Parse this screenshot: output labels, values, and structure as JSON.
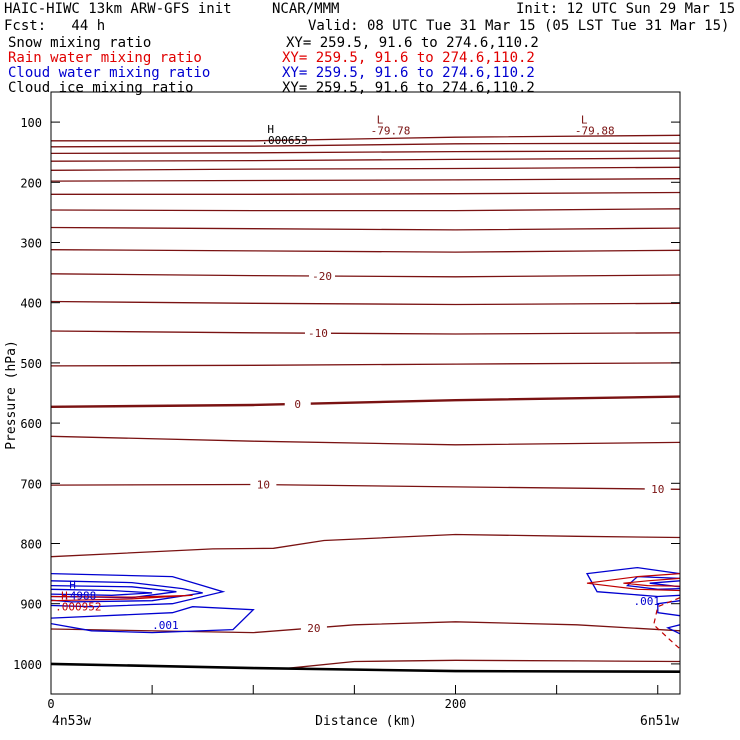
{
  "header": {
    "title": "HAIC-HIWC 13km ARW-GFS init",
    "center": "NCAR/MMM",
    "init": "Init: 12 UTC Sun 29 Mar 15",
    "fcst": "Fcst:   44 h",
    "valid": "Valid: 08 UTC Tue 31 Mar 15 (05 LST Tue 31 Mar 15)",
    "fields": [
      {
        "name": "Snow mixing ratio",
        "xy": "XY= 259.5, 91.6 to 274.6,110.2",
        "color": "#000000"
      },
      {
        "name": "Rain water mixing ratio",
        "xy": "XY= 259.5, 91.6 to 274.6,110.2",
        "color": "#e00000"
      },
      {
        "name": "Cloud water mixing ratio",
        "xy": "XY= 259.5, 91.6 to 274.6,110.2",
        "color": "#0000d0"
      },
      {
        "name": "Cloud ice mixing ratio",
        "xy": "XY= 259.5, 91.6 to 274.6,110.2",
        "color": "#000000"
      }
    ]
  },
  "colors": {
    "temperature": "#7a1212",
    "rain": "#c00000",
    "cloud": "#0000d0",
    "axis": "#000000"
  },
  "chart_data": {
    "type": "contour",
    "xlabel": "Distance (km)",
    "ylabel": "Pressure (hPa)",
    "xlim": [
      0,
      311
    ],
    "ylim": [
      1050,
      50
    ],
    "yscale": "linear-inverted",
    "x_ticks": [
      {
        "v": 0,
        "label": "0"
      },
      {
        "v": 200,
        "label": "200"
      }
    ],
    "x_minor": [
      50,
      100,
      150,
      250,
      300
    ],
    "y_ticks": [
      100,
      200,
      300,
      400,
      500,
      600,
      700,
      800,
      900,
      1000
    ],
    "endpoints": {
      "left": "4n53w",
      "right": "6n51w"
    },
    "temperature_contours": [
      {
        "points": [
          [
            0,
            131
          ],
          [
            100,
            131
          ],
          [
            200,
            125
          ],
          [
            311,
            122
          ]
        ]
      },
      {
        "points": [
          [
            0,
            141
          ],
          [
            100,
            140
          ],
          [
            200,
            136
          ],
          [
            311,
            135
          ]
        ]
      },
      {
        "points": [
          [
            0,
            152
          ],
          [
            100,
            151
          ],
          [
            200,
            149
          ],
          [
            311,
            148
          ]
        ]
      },
      {
        "points": [
          [
            0,
            165
          ],
          [
            100,
            164
          ],
          [
            200,
            162
          ],
          [
            311,
            160
          ]
        ]
      },
      {
        "points": [
          [
            0,
            180
          ],
          [
            100,
            178
          ],
          [
            200,
            177
          ],
          [
            311,
            175
          ]
        ]
      },
      {
        "points": [
          [
            0,
            198
          ],
          [
            100,
            197
          ],
          [
            200,
            196
          ],
          [
            311,
            194
          ]
        ]
      },
      {
        "points": [
          [
            0,
            220
          ],
          [
            100,
            220
          ],
          [
            200,
            219
          ],
          [
            311,
            217
          ]
        ]
      },
      {
        "points": [
          [
            0,
            246
          ],
          [
            100,
            247
          ],
          [
            200,
            247
          ],
          [
            311,
            244
          ]
        ]
      },
      {
        "points": [
          [
            0,
            275
          ],
          [
            100,
            277
          ],
          [
            200,
            279
          ],
          [
            311,
            276
          ]
        ]
      },
      {
        "points": [
          [
            0,
            312
          ],
          [
            100,
            314
          ],
          [
            200,
            316
          ],
          [
            311,
            313
          ]
        ]
      },
      {
        "points": [
          [
            0,
            352
          ],
          [
            100,
            355
          ],
          [
            200,
            357
          ],
          [
            311,
            354
          ]
        ],
        "label": "-20",
        "lx": 134
      },
      {
        "points": [
          [
            0,
            398
          ],
          [
            100,
            401
          ],
          [
            200,
            403
          ],
          [
            311,
            401
          ]
        ]
      },
      {
        "points": [
          [
            0,
            447
          ],
          [
            100,
            450
          ],
          [
            200,
            452
          ],
          [
            311,
            450
          ]
        ],
        "label": "-10",
        "lx": 132
      },
      {
        "points": [
          [
            0,
            505
          ],
          [
            100,
            504
          ],
          [
            200,
            502
          ],
          [
            311,
            500
          ]
        ]
      },
      {
        "points": [
          [
            0,
            573
          ],
          [
            100,
            570
          ],
          [
            200,
            562
          ],
          [
            311,
            556
          ]
        ],
        "label": "0",
        "lx": 122,
        "bold": true
      },
      {
        "points": [
          [
            0,
            622
          ],
          [
            100,
            630
          ],
          [
            200,
            636
          ],
          [
            311,
            632
          ]
        ]
      },
      {
        "points": [
          [
            0,
            703
          ],
          [
            100,
            702
          ],
          [
            200,
            706
          ],
          [
            311,
            710
          ]
        ],
        "label": "10",
        "lx": 105,
        "label2": "10",
        "lx2": 300
      },
      {
        "points": [
          [
            0,
            822
          ],
          [
            80,
            809
          ],
          [
            110,
            808
          ],
          [
            135,
            795
          ],
          [
            200,
            785
          ],
          [
            260,
            788
          ],
          [
            311,
            790
          ]
        ]
      },
      {
        "points": [
          [
            0,
            942
          ],
          [
            100,
            948
          ],
          [
            150,
            935
          ],
          [
            200,
            930
          ],
          [
            260,
            935
          ],
          [
            311,
            945
          ]
        ],
        "label": "20",
        "lx": 130
      },
      {
        "points": [
          [
            115,
            1008
          ],
          [
            150,
            996
          ],
          [
            200,
            994
          ],
          [
            260,
            995
          ],
          [
            311,
            996
          ]
        ]
      }
    ],
    "ground": {
      "points": [
        [
          0,
          1000
        ],
        [
          100,
          1007
        ],
        [
          200,
          1012
        ],
        [
          311,
          1013
        ]
      ]
    },
    "cloud_water": [
      {
        "points": [
          [
            0,
            850
          ],
          [
            60,
            855
          ],
          [
            75,
            870
          ],
          [
            85,
            880
          ],
          [
            60,
            900
          ],
          [
            20,
            905
          ],
          [
            0,
            903
          ]
        ]
      },
      {
        "points": [
          [
            0,
            862
          ],
          [
            40,
            865
          ],
          [
            65,
            875
          ],
          [
            75,
            882
          ],
          [
            50,
            895
          ],
          [
            10,
            897
          ],
          [
            0,
            894
          ]
        ]
      },
      {
        "points": [
          [
            0,
            870
          ],
          [
            40,
            872
          ],
          [
            62,
            880
          ],
          [
            40,
            890
          ],
          [
            0,
            888
          ]
        ]
      },
      {
        "points": [
          [
            0,
            876
          ],
          [
            30,
            878
          ],
          [
            50,
            882
          ],
          [
            30,
            886
          ],
          [
            0,
            884
          ]
        ]
      },
      {
        "points": [
          [
            0,
            933
          ],
          [
            20,
            945
          ],
          [
            50,
            948
          ],
          [
            90,
            943
          ],
          [
            100,
            910
          ],
          [
            70,
            905
          ],
          [
            60,
            915
          ],
          [
            0,
            924
          ]
        ]
      },
      {
        "points": [
          [
            311,
            850
          ],
          [
            290,
            840
          ],
          [
            265,
            850
          ],
          [
            270,
            880
          ],
          [
            300,
            888
          ],
          [
            311,
            886
          ]
        ]
      },
      {
        "points": [
          [
            311,
            858
          ],
          [
            290,
            855
          ],
          [
            285,
            870
          ],
          [
            300,
            876
          ],
          [
            311,
            875
          ]
        ]
      },
      {
        "points": [
          [
            311,
            862
          ],
          [
            296,
            866
          ],
          [
            311,
            872
          ]
        ]
      },
      {
        "points": [
          [
            311,
            895
          ],
          [
            300,
            900
          ],
          [
            300,
            915
          ],
          [
            311,
            920
          ]
        ]
      },
      {
        "points": [
          [
            311,
            935
          ],
          [
            305,
            940
          ],
          [
            311,
            950
          ]
        ]
      }
    ],
    "rain_water": [
      {
        "points": [
          [
            0,
            888
          ],
          [
            40,
            889
          ],
          [
            70,
            886
          ],
          [
            40,
            892
          ],
          [
            0,
            895
          ]
        ]
      },
      {
        "points": [
          [
            311,
            850
          ],
          [
            290,
            855
          ],
          [
            265,
            866
          ],
          [
            290,
            876
          ],
          [
            311,
            878
          ]
        ]
      },
      {
        "points": [
          [
            311,
            858
          ],
          [
            295,
            862
          ],
          [
            283,
            866
          ],
          [
            295,
            870
          ],
          [
            311,
            871
          ]
        ]
      }
    ],
    "rain_dashed": {
      "points": [
        [
          311,
          890
        ],
        [
          300,
          905
        ],
        [
          298,
          935
        ],
        [
          306,
          960
        ],
        [
          311,
          975
        ]
      ]
    },
    "annotations": [
      {
        "text": "H",
        "sub": ".000653",
        "x": 107,
        "p": 118,
        "color": "#000000"
      },
      {
        "text": "L",
        "sub": "-79.78",
        "x": 161,
        "p": 102,
        "color": "#7a1212"
      },
      {
        "text": "L",
        "sub": "-79.88",
        "x": 262,
        "p": 102,
        "color": "#7a1212"
      },
      {
        "text": "H",
        "sub": ".4988",
        "x": 9,
        "p": 875,
        "color": "#0000d0"
      },
      {
        "text": "H",
        "sub": ".000952",
        "x": 5,
        "p": 893,
        "color": "#c00000"
      },
      {
        "text": ".001",
        "x": 50,
        "p": 942,
        "color": "#0000d0"
      },
      {
        "text": ".001",
        "x": 288,
        "p": 902,
        "color": "#0000d0"
      }
    ]
  }
}
